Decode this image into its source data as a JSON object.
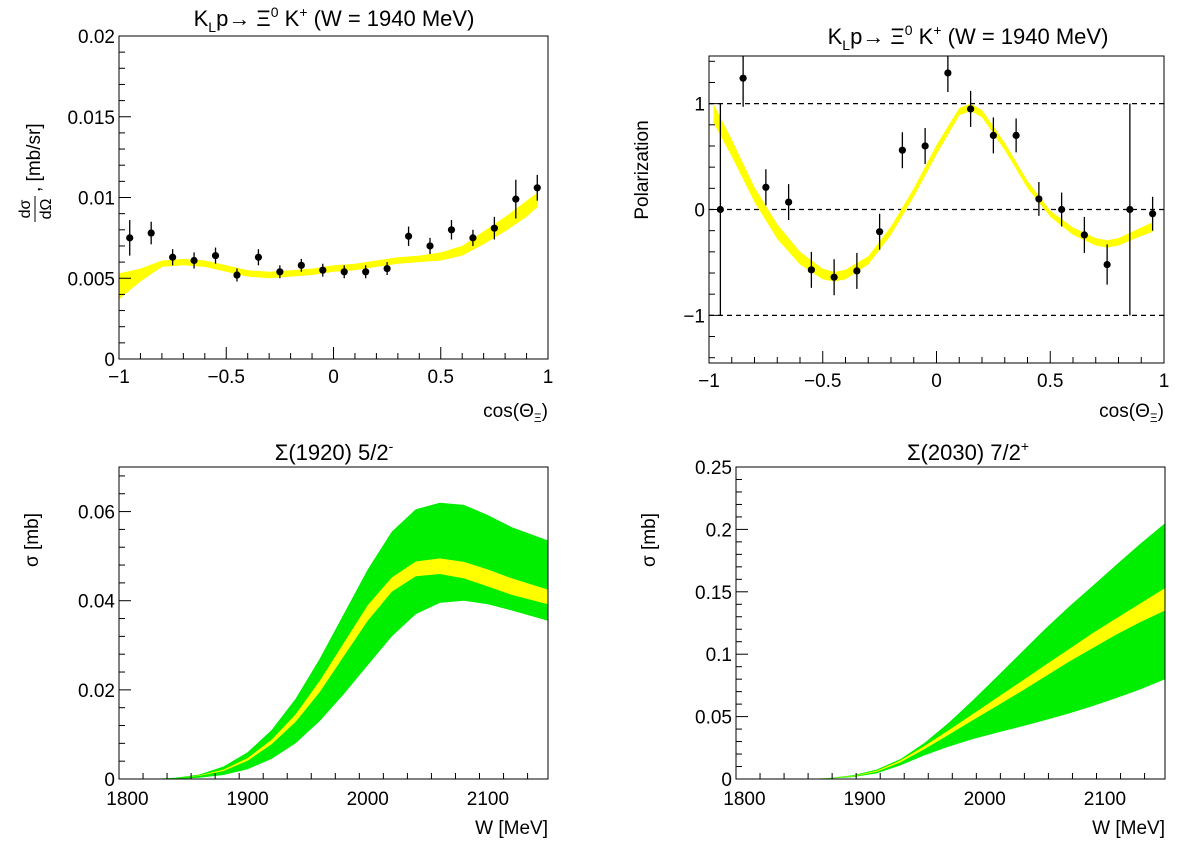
{
  "chart_data": [
    {
      "id": "dsigma",
      "type": "scatter",
      "title": "K_Lp→ Ξ^0 K^+  (W = 1940 MeV)",
      "xlabel": "cos(Θ_Ξ)",
      "ylabel": "dσ/dΩ, [mb/sr]",
      "xlim": [
        -1,
        1
      ],
      "ylim": [
        0,
        0.02
      ],
      "xticks": [
        "−1",
        "−0.5",
        "0",
        "0.5",
        "1"
      ],
      "yticks": [
        "0",
        "0.005",
        "0.01",
        "0.015",
        "0.02"
      ],
      "grid": false,
      "colors": {
        "band": "#ffff00",
        "points": "#000000"
      },
      "points": {
        "x": [
          -0.95,
          -0.85,
          -0.75,
          -0.65,
          -0.55,
          -0.45,
          -0.35,
          -0.25,
          -0.15,
          -0.05,
          0.05,
          0.15,
          0.25,
          0.35,
          0.45,
          0.55,
          0.65,
          0.75,
          0.85,
          0.95
        ],
        "y": [
          0.0075,
          0.0078,
          0.0063,
          0.0061,
          0.0064,
          0.0052,
          0.0063,
          0.0054,
          0.0058,
          0.0055,
          0.0054,
          0.0054,
          0.0056,
          0.0076,
          0.007,
          0.008,
          0.0075,
          0.0081,
          0.0099,
          0.0106
        ],
        "err": [
          0.0011,
          0.0007,
          0.0005,
          0.0005,
          0.0005,
          0.0004,
          0.0005,
          0.0004,
          0.0004,
          0.0004,
          0.0004,
          0.0004,
          0.0004,
          0.0006,
          0.0005,
          0.0006,
          0.0005,
          0.0007,
          0.0012,
          0.0008
        ]
      },
      "band": {
        "x": [
          -1,
          -0.9,
          -0.8,
          -0.7,
          -0.6,
          -0.5,
          -0.4,
          -0.3,
          -0.2,
          -0.1,
          0,
          0.1,
          0.2,
          0.3,
          0.4,
          0.5,
          0.6,
          0.7,
          0.8,
          0.9,
          0.95
        ],
        "low": [
          0.0037,
          0.0048,
          0.0057,
          0.0058,
          0.0057,
          0.0054,
          0.0051,
          0.005,
          0.0051,
          0.0052,
          0.0054,
          0.0055,
          0.0057,
          0.0059,
          0.006,
          0.0061,
          0.0064,
          0.0071,
          0.0079,
          0.0088,
          0.0094
        ],
        "high": [
          0.0053,
          0.0056,
          0.0061,
          0.0062,
          0.0061,
          0.0058,
          0.0055,
          0.0054,
          0.0055,
          0.0056,
          0.0058,
          0.0059,
          0.0061,
          0.0063,
          0.0064,
          0.0066,
          0.007,
          0.0079,
          0.0088,
          0.0098,
          0.0103
        ]
      }
    },
    {
      "id": "polarization",
      "type": "scatter",
      "title": "K_Lp→ Ξ^0 K^+  (W = 1940 MeV)",
      "xlabel": "cos(Θ_Ξ)",
      "ylabel": "Polarization",
      "xlim": [
        -1,
        1
      ],
      "ylim": [
        -1.45,
        1.45
      ],
      "xticks": [
        "−1",
        "−0.5",
        "0",
        "0.5",
        "1"
      ],
      "yticks": [
        "−1",
        "0",
        "1"
      ],
      "grid": false,
      "dashed_lines": [
        -1,
        0,
        1
      ],
      "colors": {
        "band": "#ffff00",
        "points": "#000000"
      },
      "points": {
        "x": [
          -0.95,
          -0.85,
          -0.75,
          -0.65,
          -0.55,
          -0.45,
          -0.35,
          -0.25,
          -0.15,
          -0.05,
          0.05,
          0.15,
          0.25,
          0.35,
          0.45,
          0.55,
          0.65,
          0.75,
          0.85,
          0.95
        ],
        "y": [
          0.0,
          1.24,
          0.21,
          0.07,
          -0.57,
          -0.64,
          -0.58,
          -0.21,
          0.56,
          0.6,
          1.29,
          0.95,
          0.7,
          0.7,
          0.1,
          0.0,
          -0.24,
          -0.52,
          0.0,
          -0.04
        ],
        "err": [
          1.0,
          0.27,
          0.17,
          0.17,
          0.17,
          0.17,
          0.17,
          0.17,
          0.17,
          0.17,
          0.18,
          0.17,
          0.17,
          0.16,
          0.16,
          0.16,
          0.17,
          0.19,
          1.0,
          0.16
        ]
      },
      "band": {
        "x": [
          -0.98,
          -0.9,
          -0.8,
          -0.7,
          -0.6,
          -0.5,
          -0.45,
          -0.4,
          -0.3,
          -0.2,
          -0.1,
          0,
          0.1,
          0.15,
          0.2,
          0.3,
          0.4,
          0.5,
          0.6,
          0.7,
          0.75,
          0.8,
          0.9,
          0.95
        ],
        "low": [
          0.82,
          0.5,
          0.07,
          -0.28,
          -0.52,
          -0.66,
          -0.68,
          -0.66,
          -0.52,
          -0.24,
          0.12,
          0.52,
          0.89,
          0.93,
          0.87,
          0.56,
          0.2,
          -0.07,
          -0.24,
          -0.34,
          -0.36,
          -0.34,
          -0.25,
          -0.21
        ],
        "high": [
          1.0,
          0.66,
          0.21,
          -0.14,
          -0.4,
          -0.56,
          -0.59,
          -0.57,
          -0.44,
          -0.16,
          0.2,
          0.61,
          0.96,
          1.0,
          0.94,
          0.63,
          0.27,
          -0.01,
          -0.17,
          -0.27,
          -0.29,
          -0.27,
          -0.17,
          -0.12
        ]
      }
    },
    {
      "id": "sigma1920",
      "type": "area",
      "title": "Σ(1920) 5/2^-",
      "xlabel": "W [MeV]",
      "ylabel": "σ [mb]",
      "xlim": [
        1793,
        2150
      ],
      "ylim": [
        0,
        0.07
      ],
      "xticks": [
        "1800",
        "1900",
        "2000",
        "2100"
      ],
      "yticks": [
        "0",
        "0.02",
        "0.04",
        "0.06"
      ],
      "grid": false,
      "colors": {
        "outer": "#00ee00",
        "inner": "#ffff00"
      },
      "x": [
        1820,
        1840,
        1860,
        1880,
        1900,
        1920,
        1940,
        1960,
        1980,
        2000,
        2020,
        2040,
        2060,
        2080,
        2100,
        2120,
        2150
      ],
      "outer_low": [
        0,
        0,
        0.0003,
        0.0009,
        0.0022,
        0.0045,
        0.008,
        0.013,
        0.019,
        0.0255,
        0.032,
        0.037,
        0.0395,
        0.04,
        0.0392,
        0.0378,
        0.0355
      ],
      "outer_high": [
        0,
        0.0003,
        0.001,
        0.0028,
        0.006,
        0.011,
        0.018,
        0.027,
        0.037,
        0.047,
        0.0555,
        0.0605,
        0.062,
        0.0615,
        0.0592,
        0.0565,
        0.0535
      ],
      "inner_low": [
        0,
        0.0002,
        0.0007,
        0.0018,
        0.0041,
        0.0078,
        0.0128,
        0.0195,
        0.0275,
        0.0355,
        0.042,
        0.0455,
        0.046,
        0.045,
        0.0432,
        0.0413,
        0.0392
      ],
      "inner_high": [
        0,
        0.0002,
        0.0008,
        0.0021,
        0.0047,
        0.0088,
        0.0145,
        0.022,
        0.0305,
        0.039,
        0.0452,
        0.0488,
        0.0495,
        0.0487,
        0.047,
        0.045,
        0.0425
      ]
    },
    {
      "id": "sigma2030",
      "type": "area",
      "title": "Σ(2030) 7/2^+",
      "xlabel": "W [MeV]",
      "ylabel": "σ [mb]",
      "xlim": [
        1793,
        2150
      ],
      "ylim": [
        0,
        0.25
      ],
      "xticks": [
        "1800",
        "1900",
        "2000",
        "2100"
      ],
      "yticks": [
        "0",
        "0.05",
        "0.1",
        "0.15",
        "0.2",
        "0.25"
      ],
      "grid": false,
      "colors": {
        "outer": "#00ee00",
        "inner": "#ffff00"
      },
      "x": [
        1850,
        1870,
        1890,
        1910,
        1930,
        1950,
        1970,
        1990,
        2010,
        2030,
        2050,
        2070,
        2090,
        2110,
        2130,
        2150
      ],
      "outer_low": [
        0,
        0.0003,
        0.0015,
        0.0045,
        0.011,
        0.019,
        0.026,
        0.032,
        0.037,
        0.042,
        0.047,
        0.0525,
        0.0585,
        0.065,
        0.072,
        0.08
      ],
      "outer_high": [
        0,
        0.0007,
        0.003,
        0.0075,
        0.016,
        0.029,
        0.045,
        0.063,
        0.082,
        0.101,
        0.12,
        0.138,
        0.155,
        0.172,
        0.189,
        0.205
      ],
      "inner_low": [
        0,
        0.0005,
        0.002,
        0.0058,
        0.0135,
        0.024,
        0.0355,
        0.047,
        0.0585,
        0.07,
        0.082,
        0.094,
        0.105,
        0.116,
        0.126,
        0.135
      ],
      "inner_high": [
        0,
        0.0006,
        0.0024,
        0.0066,
        0.015,
        0.0265,
        0.039,
        0.052,
        0.065,
        0.078,
        0.091,
        0.104,
        0.117,
        0.129,
        0.141,
        0.153
      ]
    }
  ]
}
